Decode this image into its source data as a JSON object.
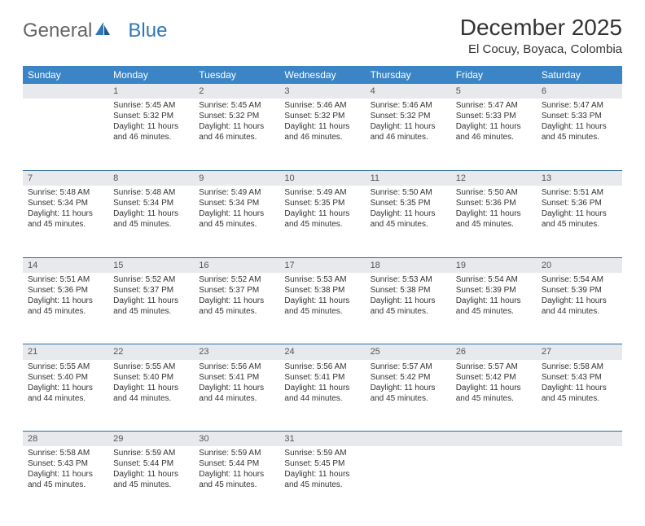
{
  "logo": {
    "part1": "General",
    "part2": "Blue"
  },
  "title": "December 2025",
  "location": "El Cocuy, Boyaca, Colombia",
  "colors": {
    "header_bg": "#3b85c6",
    "header_text": "#ffffff",
    "daynum_bg": "#e7e9ec",
    "daynum_text": "#555555",
    "cell_text": "#333333",
    "row_divider": "#2e6da4",
    "logo_gray": "#666666",
    "logo_blue": "#2e77b8",
    "background": "#ffffff"
  },
  "typography": {
    "title_fontsize": 28,
    "location_fontsize": 15,
    "day_header_fontsize": 12,
    "daynum_fontsize": 11,
    "cell_fontsize": 10,
    "font_family": "Arial"
  },
  "day_headers": [
    "Sunday",
    "Monday",
    "Tuesday",
    "Wednesday",
    "Thursday",
    "Friday",
    "Saturday"
  ],
  "weeks": [
    [
      null,
      {
        "n": "1",
        "sr": "5:45 AM",
        "ss": "5:32 PM",
        "dh": "11",
        "dm": "46"
      },
      {
        "n": "2",
        "sr": "5:45 AM",
        "ss": "5:32 PM",
        "dh": "11",
        "dm": "46"
      },
      {
        "n": "3",
        "sr": "5:46 AM",
        "ss": "5:32 PM",
        "dh": "11",
        "dm": "46"
      },
      {
        "n": "4",
        "sr": "5:46 AM",
        "ss": "5:32 PM",
        "dh": "11",
        "dm": "46"
      },
      {
        "n": "5",
        "sr": "5:47 AM",
        "ss": "5:33 PM",
        "dh": "11",
        "dm": "46"
      },
      {
        "n": "6",
        "sr": "5:47 AM",
        "ss": "5:33 PM",
        "dh": "11",
        "dm": "45"
      }
    ],
    [
      {
        "n": "7",
        "sr": "5:48 AM",
        "ss": "5:34 PM",
        "dh": "11",
        "dm": "45"
      },
      {
        "n": "8",
        "sr": "5:48 AM",
        "ss": "5:34 PM",
        "dh": "11",
        "dm": "45"
      },
      {
        "n": "9",
        "sr": "5:49 AM",
        "ss": "5:34 PM",
        "dh": "11",
        "dm": "45"
      },
      {
        "n": "10",
        "sr": "5:49 AM",
        "ss": "5:35 PM",
        "dh": "11",
        "dm": "45"
      },
      {
        "n": "11",
        "sr": "5:50 AM",
        "ss": "5:35 PM",
        "dh": "11",
        "dm": "45"
      },
      {
        "n": "12",
        "sr": "5:50 AM",
        "ss": "5:36 PM",
        "dh": "11",
        "dm": "45"
      },
      {
        "n": "13",
        "sr": "5:51 AM",
        "ss": "5:36 PM",
        "dh": "11",
        "dm": "45"
      }
    ],
    [
      {
        "n": "14",
        "sr": "5:51 AM",
        "ss": "5:36 PM",
        "dh": "11",
        "dm": "45"
      },
      {
        "n": "15",
        "sr": "5:52 AM",
        "ss": "5:37 PM",
        "dh": "11",
        "dm": "45"
      },
      {
        "n": "16",
        "sr": "5:52 AM",
        "ss": "5:37 PM",
        "dh": "11",
        "dm": "45"
      },
      {
        "n": "17",
        "sr": "5:53 AM",
        "ss": "5:38 PM",
        "dh": "11",
        "dm": "45"
      },
      {
        "n": "18",
        "sr": "5:53 AM",
        "ss": "5:38 PM",
        "dh": "11",
        "dm": "45"
      },
      {
        "n": "19",
        "sr": "5:54 AM",
        "ss": "5:39 PM",
        "dh": "11",
        "dm": "45"
      },
      {
        "n": "20",
        "sr": "5:54 AM",
        "ss": "5:39 PM",
        "dh": "11",
        "dm": "44"
      }
    ],
    [
      {
        "n": "21",
        "sr": "5:55 AM",
        "ss": "5:40 PM",
        "dh": "11",
        "dm": "44"
      },
      {
        "n": "22",
        "sr": "5:55 AM",
        "ss": "5:40 PM",
        "dh": "11",
        "dm": "44"
      },
      {
        "n": "23",
        "sr": "5:56 AM",
        "ss": "5:41 PM",
        "dh": "11",
        "dm": "44"
      },
      {
        "n": "24",
        "sr": "5:56 AM",
        "ss": "5:41 PM",
        "dh": "11",
        "dm": "44"
      },
      {
        "n": "25",
        "sr": "5:57 AM",
        "ss": "5:42 PM",
        "dh": "11",
        "dm": "45"
      },
      {
        "n": "26",
        "sr": "5:57 AM",
        "ss": "5:42 PM",
        "dh": "11",
        "dm": "45"
      },
      {
        "n": "27",
        "sr": "5:58 AM",
        "ss": "5:43 PM",
        "dh": "11",
        "dm": "45"
      }
    ],
    [
      {
        "n": "28",
        "sr": "5:58 AM",
        "ss": "5:43 PM",
        "dh": "11",
        "dm": "45"
      },
      {
        "n": "29",
        "sr": "5:59 AM",
        "ss": "5:44 PM",
        "dh": "11",
        "dm": "45"
      },
      {
        "n": "30",
        "sr": "5:59 AM",
        "ss": "5:44 PM",
        "dh": "11",
        "dm": "45"
      },
      {
        "n": "31",
        "sr": "5:59 AM",
        "ss": "5:45 PM",
        "dh": "11",
        "dm": "45"
      },
      null,
      null,
      null
    ]
  ],
  "labels": {
    "sunrise": "Sunrise:",
    "sunset": "Sunset:",
    "daylight_prefix": "Daylight:",
    "hours_word": "hours",
    "and_word": "and",
    "minutes_word": "minutes."
  }
}
